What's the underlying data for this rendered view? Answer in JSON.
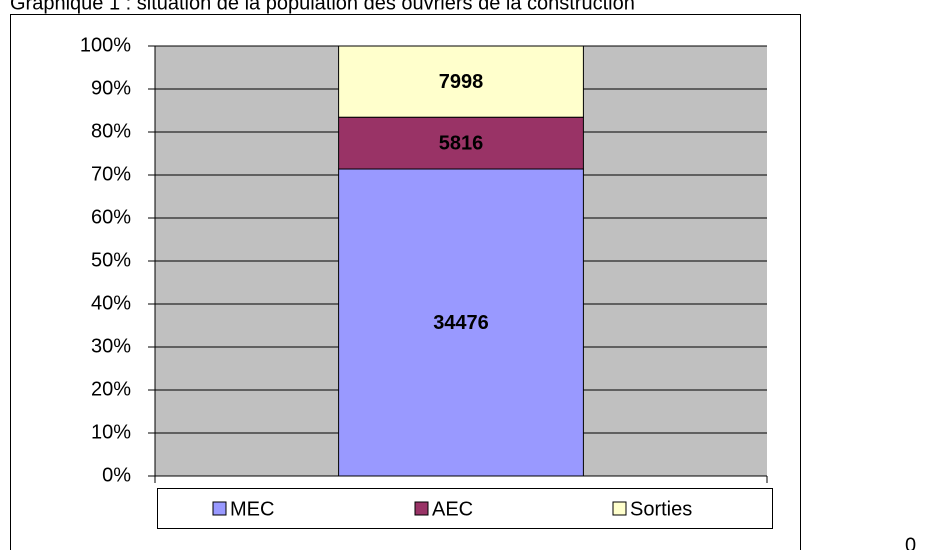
{
  "chart_data": {
    "type": "bar",
    "stacking": "percent",
    "title": "Graphique 1 : situation de la population des ouvriers de la construction",
    "categories": [
      null
    ],
    "series": [
      {
        "name": "MEC",
        "color": "#9999ff",
        "values": [
          34476
        ]
      },
      {
        "name": "AEC",
        "color": "#993366",
        "values": [
          5816
        ]
      },
      {
        "name": "Sorties",
        "color": "#ffffcc",
        "values": [
          7998
        ]
      }
    ],
    "ylim": [
      0,
      100
    ],
    "yticks": [
      {
        "value": 0,
        "label": "0%"
      },
      {
        "value": 10,
        "label": "10%"
      },
      {
        "value": 20,
        "label": "20%"
      },
      {
        "value": 30,
        "label": "30%"
      },
      {
        "value": 40,
        "label": "40%"
      },
      {
        "value": 50,
        "label": "50%"
      },
      {
        "value": 60,
        "label": "60%"
      },
      {
        "value": 70,
        "label": "70%"
      },
      {
        "value": 80,
        "label": "80%"
      },
      {
        "value": 90,
        "label": "90%"
      },
      {
        "value": 100,
        "label": "100%"
      }
    ],
    "grid": true,
    "legend": "bottom",
    "plot_background": "#c0c0c0",
    "page_note": "0"
  }
}
